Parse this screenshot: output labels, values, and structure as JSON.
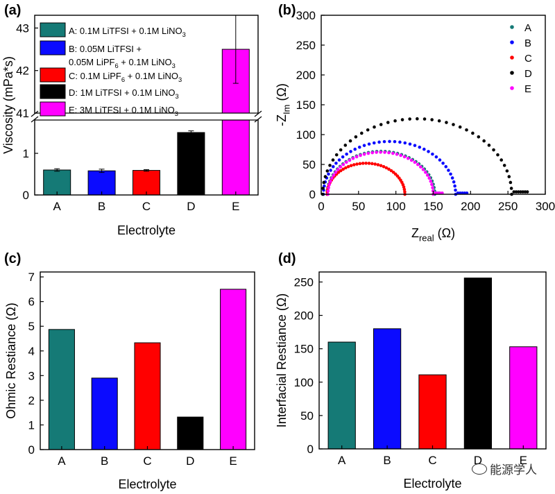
{
  "panels": {
    "a": "(a)",
    "b": "(b)",
    "c": "(c)",
    "d": "(d)"
  },
  "watermark": "能源学人",
  "colors": {
    "A": "#157a76",
    "B": "#0b0bff",
    "C": "#ff0000",
    "D": "#000000",
    "E": "#ff00ff"
  },
  "chart_data": [
    {
      "id": "a",
      "type": "bar",
      "xlabel": "Electrolyte",
      "ylabel": "Viscosity (mPa*s)",
      "categories": [
        "A",
        "B",
        "C",
        "D",
        "E"
      ],
      "values": [
        0.6,
        0.58,
        0.59,
        1.5,
        42.5
      ],
      "errors": [
        0.03,
        0.04,
        0.02,
        0.04,
        0.8
      ],
      "y_broken": true,
      "ylim_lower": [
        0,
        1.8
      ],
      "ylim_upper": [
        41,
        43.3
      ],
      "yticks_lower": [
        "0",
        "1"
      ],
      "yticks_upper": [
        "41",
        "42",
        "43"
      ],
      "legend": [
        {
          "key": "A",
          "parts": [
            [
              "A: 0.1M LiTFSI + 0.1M LiNO",
              ""
            ],
            [
              "3",
              "sub"
            ]
          ]
        },
        {
          "key": "B",
          "parts": [
            [
              "B: 0.05M LiTFSI +",
              ""
            ]
          ],
          "parts2": [
            [
              "0.05M LiPF",
              ""
            ],
            [
              "6",
              "sub"
            ],
            [
              " + 0.1M LiNO",
              ""
            ],
            [
              "3",
              "sub"
            ]
          ]
        },
        {
          "key": "C",
          "parts": [
            [
              "C: 0.1M LiPF",
              ""
            ],
            [
              "6",
              "sub"
            ],
            [
              " + 0.1M LiNO",
              ""
            ],
            [
              "3",
              "sub"
            ]
          ]
        },
        {
          "key": "D",
          "parts": [
            [
              "D: 1M LiTFSI + 0.1M LiNO",
              ""
            ],
            [
              "3",
              "sub"
            ]
          ]
        },
        {
          "key": "E",
          "parts": [
            [
              "E: 3M LiTFSI + 0.1M LiNO",
              ""
            ],
            [
              "3",
              "sub"
            ]
          ]
        }
      ]
    },
    {
      "id": "b",
      "type": "scatter",
      "xlabel_main": "Z",
      "xlabel_sub": "real",
      "xlabel_unit": " (Ω)",
      "ylabel_main": "-Z",
      "ylabel_sub": "Im",
      "ylabel_unit": " (Ω)",
      "xlim": [
        0,
        300
      ],
      "ylim": [
        0,
        300
      ],
      "xticks": [
        0,
        50,
        100,
        150,
        200,
        250,
        300
      ],
      "yticks": [
        0,
        50,
        100,
        150,
        200,
        250,
        300
      ],
      "legend_position": "top-right",
      "series": [
        {
          "name": "A",
          "start": 8,
          "end": 152,
          "tail_end": 158
        },
        {
          "name": "B",
          "start": 3,
          "end": 180,
          "tail_end": 195
        },
        {
          "name": "C",
          "start": 8,
          "end": 112,
          "tail_end": 112
        },
        {
          "name": "D",
          "start": 2,
          "end": 255,
          "tail_end": 276
        },
        {
          "name": "E",
          "start": 9,
          "end": 150,
          "tail_end": 162
        }
      ]
    },
    {
      "id": "c",
      "type": "bar",
      "xlabel": "Electrolyte",
      "ylabel": "Ohmic Restiance (Ω)",
      "categories": [
        "A",
        "B",
        "C",
        "D",
        "E"
      ],
      "values": [
        4.87,
        2.9,
        4.33,
        1.32,
        6.5
      ],
      "ylim": [
        0,
        7.2
      ],
      "yticks": [
        0,
        1,
        2,
        3,
        4,
        5,
        6,
        7
      ]
    },
    {
      "id": "d",
      "type": "bar",
      "xlabel": "Electrolyte",
      "ylabel": "Interfacial Restiance (Ω)",
      "categories": [
        "A",
        "B",
        "C",
        "D",
        "E"
      ],
      "values": [
        160,
        180,
        111,
        256,
        153
      ],
      "ylim": [
        0,
        265
      ],
      "yticks": [
        0,
        50,
        100,
        150,
        200,
        250
      ]
    }
  ]
}
